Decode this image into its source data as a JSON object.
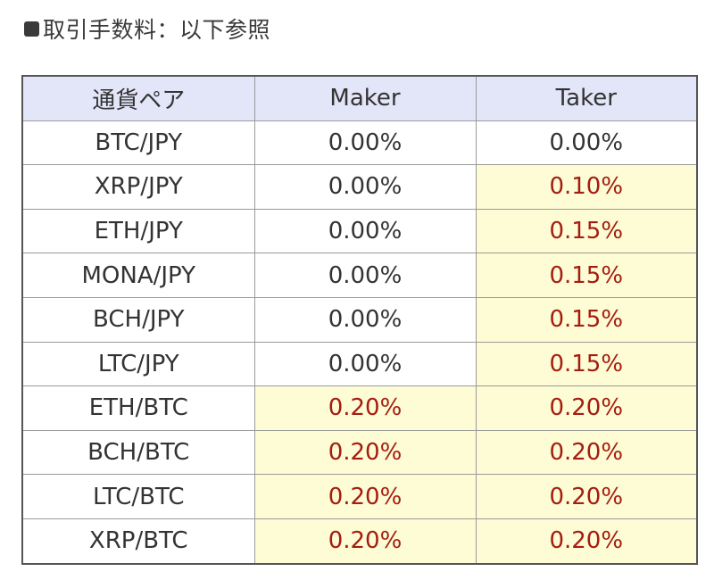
{
  "heading": {
    "icon": "black-square-icon",
    "text": "取引手数料：以下参照"
  },
  "colors": {
    "header_bg": "#e3e5f8",
    "highlight_bg": "#fdfcd4",
    "highlight_text": "#a51d12",
    "normal_text": "#333333"
  },
  "table": {
    "headers": [
      "通貨ペア",
      "Maker",
      "Taker"
    ],
    "rows": [
      {
        "pair": "BTC/JPY",
        "maker": "0.00%",
        "taker": "0.00%",
        "maker_hl": false,
        "taker_hl": false
      },
      {
        "pair": "XRP/JPY",
        "maker": "0.00%",
        "taker": "0.10%",
        "maker_hl": false,
        "taker_hl": true
      },
      {
        "pair": "ETH/JPY",
        "maker": "0.00%",
        "taker": "0.15%",
        "maker_hl": false,
        "taker_hl": true
      },
      {
        "pair": "MONA/JPY",
        "maker": "0.00%",
        "taker": "0.15%",
        "maker_hl": false,
        "taker_hl": true
      },
      {
        "pair": "BCH/JPY",
        "maker": "0.00%",
        "taker": "0.15%",
        "maker_hl": false,
        "taker_hl": true
      },
      {
        "pair": "LTC/JPY",
        "maker": "0.00%",
        "taker": "0.15%",
        "maker_hl": false,
        "taker_hl": true
      },
      {
        "pair": "ETH/BTC",
        "maker": "0.20%",
        "taker": "0.20%",
        "maker_hl": true,
        "taker_hl": true
      },
      {
        "pair": "BCH/BTC",
        "maker": "0.20%",
        "taker": "0.20%",
        "maker_hl": true,
        "taker_hl": true
      },
      {
        "pair": "LTC/BTC",
        "maker": "0.20%",
        "taker": "0.20%",
        "maker_hl": true,
        "taker_hl": true
      },
      {
        "pair": "XRP/BTC",
        "maker": "0.20%",
        "taker": "0.20%",
        "maker_hl": true,
        "taker_hl": true
      }
    ]
  }
}
